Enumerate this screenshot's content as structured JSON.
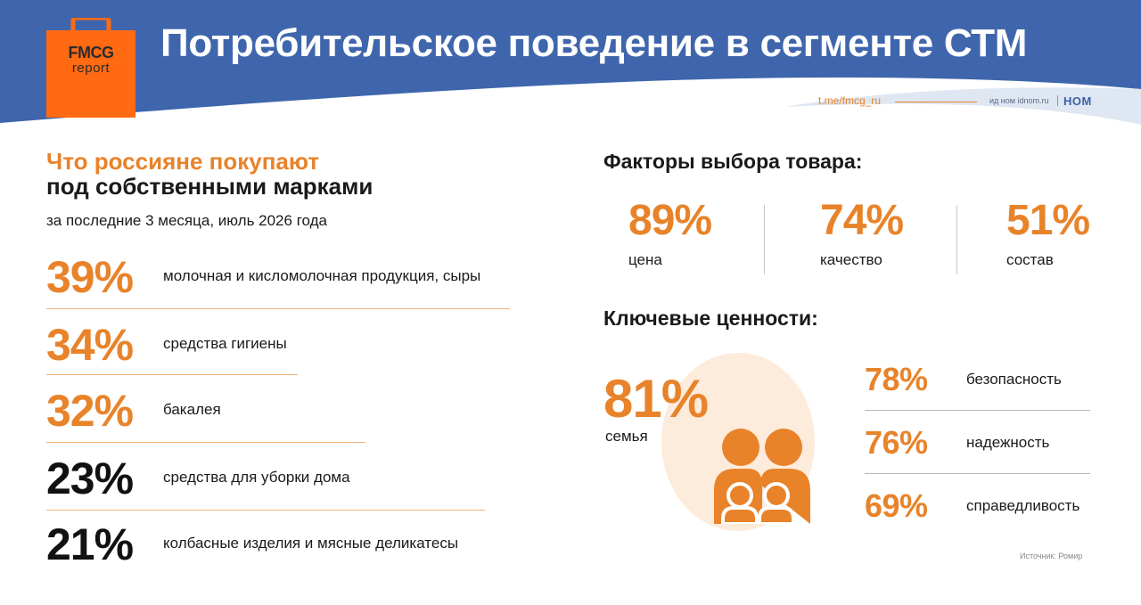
{
  "header": {
    "title": "Потребительское поведение в сегменте СТМ",
    "logo_line1": "FMCG",
    "logo_line2": "report",
    "telegram": "t.me/fmcg_ru",
    "publisher": "ид ном idnom.ru",
    "publisher_logo": "НОМ"
  },
  "left": {
    "title_orange": "Что россияне покупают",
    "title_black": "под собственными марками",
    "subtitle": "за последние 3 месяца, июль 2026 года",
    "rows": [
      {
        "pct": "39%",
        "label": "молочная и кисломолочная продукция, сыры",
        "color": "#e8832a"
      },
      {
        "pct": "34%",
        "label": "средства гигиены",
        "color": "#e8832a"
      },
      {
        "pct": "32%",
        "label": "бакалея",
        "color": "#e8832a"
      },
      {
        "pct": "23%",
        "label": "средства для уборки дома",
        "color": "#111111"
      },
      {
        "pct": "21%",
        "label": "колбасные изделия и мясные деликатесы",
        "color": "#111111"
      }
    ]
  },
  "factors": {
    "title": "Факторы выбора товара:",
    "items": [
      {
        "pct": "89%",
        "label": "цена"
      },
      {
        "pct": "74%",
        "label": "качество"
      },
      {
        "pct": "51%",
        "label": "состав"
      }
    ]
  },
  "values": {
    "title": "Ключевые ценности:",
    "family": {
      "pct": "81%",
      "label": "семья",
      "icon": "family-icon"
    },
    "items": [
      {
        "pct": "78%",
        "label": "безопасность"
      },
      {
        "pct": "76%",
        "label": "надежность"
      },
      {
        "pct": "69%",
        "label": "справедливость"
      }
    ]
  },
  "source": "Источник: Ромир",
  "colors": {
    "accent": "#e8832a",
    "header_blue": "#3f66ac",
    "light_orange": "#fdebdc"
  }
}
